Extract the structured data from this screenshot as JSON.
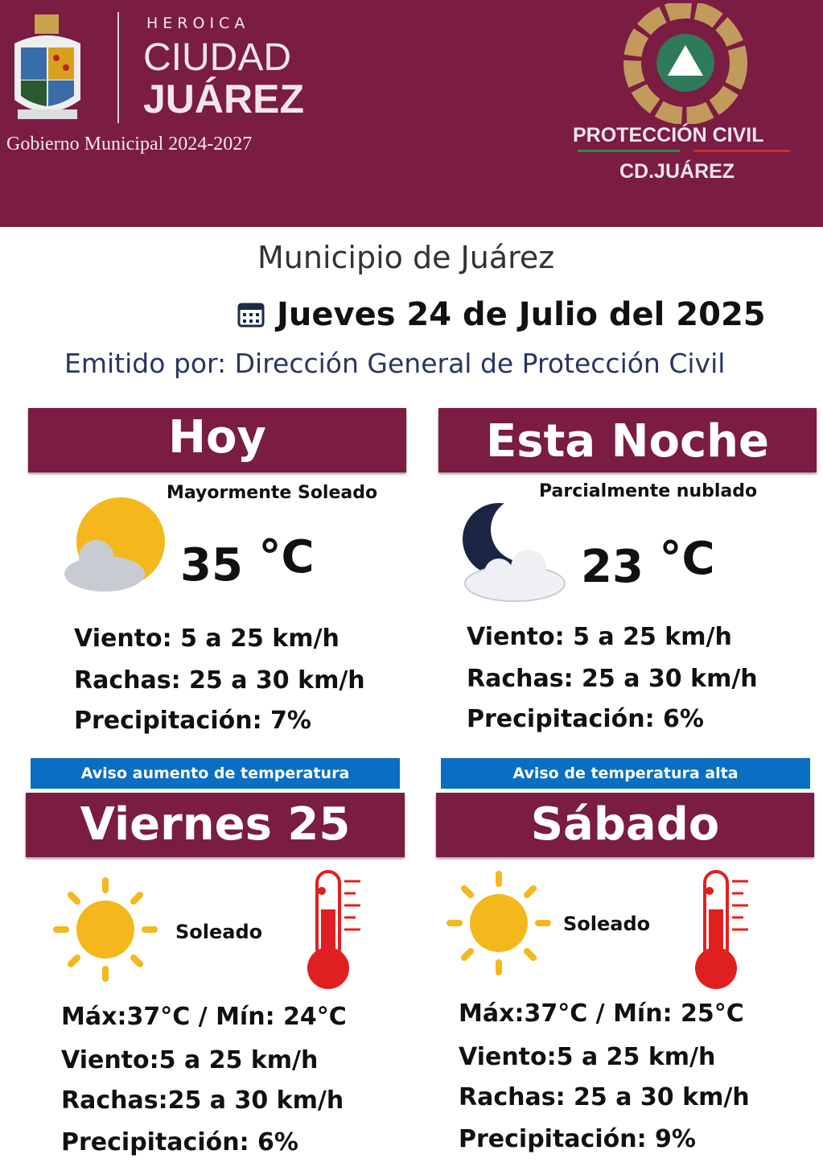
{
  "header": {
    "heroica": "HEROICA",
    "ciudad": "CIUDAD",
    "juarez": "JUÁREZ",
    "gobierno": "Gobierno Municipal 2024-2027",
    "pc_title": "PROTECCIÓN CIVIL",
    "pc_city": "CD.JUÁREZ"
  },
  "info": {
    "municipio": "Municipio de Juárez",
    "fecha": "Jueves 24 de Julio del 2025",
    "emitido": "Emitido por: Dirección General de Protección Civil"
  },
  "colors": {
    "maroon": "#7b1c42",
    "aviso_blue": "#0a6fc2"
  },
  "hoy": {
    "title": "Hoy",
    "condition": "Mayormente Soleado",
    "temp": "35",
    "unit": "°C",
    "icon": "sun-cloud-icon",
    "viento_label": "Viento:",
    "viento": "5 a 25 km/h",
    "rachas_label": "Rachas:",
    "rachas": "25 a 30 km/h",
    "precip_label": "Precipitación:",
    "precip": "7%"
  },
  "noche": {
    "title": "Esta Noche",
    "condition": "Parcialmente nublado",
    "temp": "23",
    "unit": "°C",
    "icon": "moon-cloud-icon",
    "viento_label": "Viento:",
    "viento": "5 a 25 km/h",
    "rachas_label": "Rachas:",
    "rachas": "25 a 30 km/h",
    "precip_label": "Precipitación:",
    "precip": "6%"
  },
  "viernes": {
    "aviso": "Aviso aumento de temperatura",
    "title": "Viernes 25",
    "condition": "Soleado",
    "maxmin_label_max": "Máx:",
    "max": "37°C /",
    "min_label": "Mín:",
    "min": "24°C",
    "viento_label": "Viento:",
    "viento": "5 a 25 km/h",
    "rachas_label": "Rachas:",
    "rachas": "25 a 30 km/h",
    "precip_label": "Precipitación:",
    "precip": "6%"
  },
  "sabado": {
    "aviso": "Aviso de temperatura alta",
    "title": "Sábado",
    "condition": "Soleado",
    "maxmin_label_max": "Máx:",
    "max": "37°C /",
    "min_label": "Mín:",
    "min": "25°C",
    "viento_label": "Viento:",
    "viento": "5 a 25 km/h",
    "rachas_label": "Rachas:",
    "rachas": "25 a 30 km/h",
    "precip_label": "Precipitación:",
    "precip": "9%"
  }
}
